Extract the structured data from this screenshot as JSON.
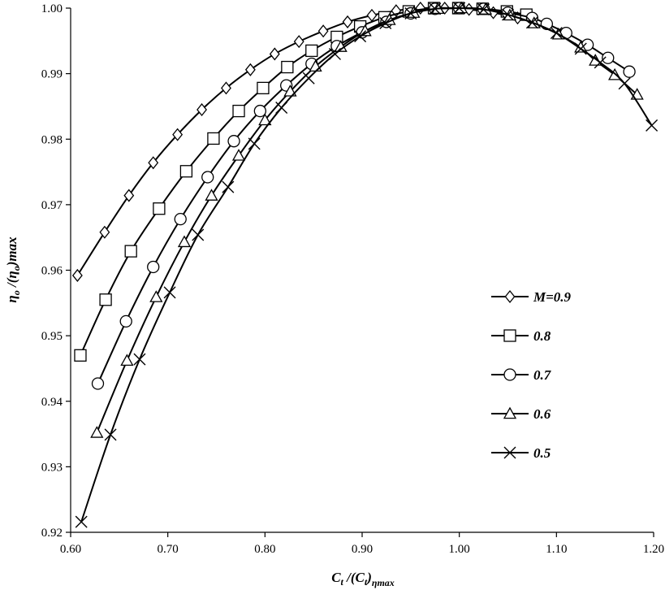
{
  "chart_data": {
    "type": "line",
    "title": "",
    "xlabel": "C_t /(C_t)_ηmax",
    "ylabel": "η_o /(η_o)max",
    "xlim": [
      0.6,
      1.2
    ],
    "ylim": [
      0.92,
      1.0
    ],
    "x_ticks": [
      "0.60",
      "0.70",
      "0.80",
      "0.90",
      "1.00",
      "1.10",
      "1.20"
    ],
    "y_ticks": [
      "0.92",
      "0.93",
      "0.94",
      "0.95",
      "0.96",
      "0.97",
      "0.98",
      "0.99",
      "1.00"
    ],
    "grid": false,
    "legend_position": "right",
    "series": [
      {
        "name": "M=0.9",
        "marker": "diamond",
        "x": [
          0.607,
          0.635,
          0.66,
          0.685,
          0.71,
          0.735,
          0.76,
          0.785,
          0.81,
          0.835,
          0.86,
          0.885,
          0.91,
          0.935,
          0.96,
          0.985,
          1.01,
          1.035,
          1.06
        ],
        "y": [
          0.9592,
          0.9658,
          0.9714,
          0.9764,
          0.9807,
          0.9845,
          0.9878,
          0.9906,
          0.993,
          0.9949,
          0.9965,
          0.9979,
          0.9989,
          0.9996,
          1.0,
          1.0,
          0.9998,
          0.9993,
          0.9985
        ]
      },
      {
        "name": "0.8",
        "marker": "square",
        "x": [
          0.61,
          0.636,
          0.662,
          0.691,
          0.719,
          0.747,
          0.773,
          0.798,
          0.823,
          0.848,
          0.874,
          0.898,
          0.923,
          0.948,
          0.974,
          0.999,
          1.024,
          1.049,
          1.069
        ],
        "y": [
          0.947,
          0.9555,
          0.9629,
          0.9694,
          0.9751,
          0.9801,
          0.9843,
          0.9878,
          0.991,
          0.9935,
          0.9956,
          0.9972,
          0.9986,
          0.9995,
          1.0,
          1.0,
          0.9999,
          0.9995,
          0.999
        ]
      },
      {
        "name": "0.7",
        "marker": "circle",
        "x": [
          0.628,
          0.657,
          0.685,
          0.713,
          0.741,
          0.768,
          0.795,
          0.822,
          0.848,
          0.874,
          0.9,
          0.925,
          0.95,
          0.975,
          1.0,
          1.025,
          1.05,
          1.075,
          1.09,
          1.11,
          1.132,
          1.153,
          1.175
        ],
        "y": [
          0.9427,
          0.9522,
          0.9605,
          0.9678,
          0.9742,
          0.9797,
          0.9843,
          0.9882,
          0.9915,
          0.9942,
          0.9963,
          0.9979,
          0.9992,
          0.9999,
          1.0,
          0.9999,
          0.9993,
          0.9985,
          0.9976,
          0.9962,
          0.9944,
          0.9924,
          0.9903
        ]
      },
      {
        "name": "0.6",
        "marker": "triangle",
        "x": [
          0.627,
          0.658,
          0.688,
          0.717,
          0.745,
          0.773,
          0.8,
          0.826,
          0.852,
          0.878,
          0.903,
          0.928,
          0.953,
          0.978,
          1.002,
          1.027,
          1.052,
          1.077,
          1.102,
          1.125,
          1.14,
          1.16,
          1.183
        ],
        "y": [
          0.9352,
          0.9462,
          0.9559,
          0.9643,
          0.9714,
          0.9775,
          0.9829,
          0.9873,
          0.9911,
          0.9941,
          0.9965,
          0.9982,
          0.9993,
          0.9999,
          1.0,
          0.9998,
          0.9989,
          0.9977,
          0.996,
          0.994,
          0.992,
          0.9898,
          0.9868
        ]
      },
      {
        "name": "0.5",
        "marker": "x",
        "x": [
          0.611,
          0.641,
          0.671,
          0.702,
          0.731,
          0.762,
          0.789,
          0.817,
          0.845,
          0.872,
          0.898,
          0.924,
          0.95,
          0.975,
          1.0,
          1.025,
          1.05,
          1.075,
          1.1,
          1.125,
          1.145,
          1.17,
          1.198
        ],
        "y": [
          0.9216,
          0.9349,
          0.9464,
          0.9566,
          0.9654,
          0.9727,
          0.9793,
          0.9848,
          0.9893,
          0.993,
          0.9957,
          0.9977,
          0.9992,
          0.9999,
          1.0,
          0.9998,
          0.999,
          0.9978,
          0.9962,
          0.9938,
          0.9917,
          0.9885,
          0.9821
        ]
      }
    ]
  }
}
